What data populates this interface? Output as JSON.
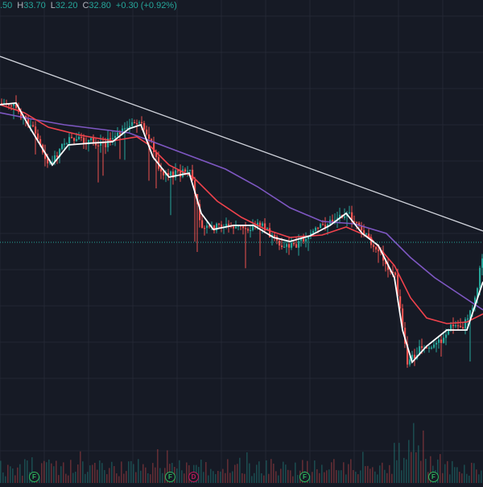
{
  "header": {
    "open_fragment": ".50",
    "high_label": "H",
    "high_value": "33.70",
    "low_label": "L",
    "low_value": "32.20",
    "close_label": "C",
    "close_value": "32.80",
    "change": "+0.30 (+0.92%)"
  },
  "colors": {
    "background": "#161a25",
    "grid": "#232734",
    "up": "#26a69a",
    "down": "#ef5350",
    "ma_fast": "#ffffff",
    "ma_mid": "#f0424c",
    "ma_slow": "#7e57c2",
    "trendline": "#d1d4dc",
    "price_line": "#26a69a",
    "event_f": "#2eb85c",
    "event_d": "#c2185b"
  },
  "events": [
    {
      "letter": "F",
      "type": "event_f"
    },
    {
      "letter": "F",
      "type": "event_f"
    },
    {
      "letter": "D",
      "type": "event_d"
    },
    {
      "letter": "F",
      "type": "event_f"
    },
    {
      "letter": "F",
      "type": "event_f"
    }
  ],
  "chart_data": {
    "type": "candlestick",
    "grid": true,
    "y_axis": "hidden",
    "x_axis": "hidden",
    "indicators": [
      "fast moving average (white)",
      "medium moving average (red)",
      "slow moving average (purple)",
      "descending trendline",
      "volume histogram"
    ],
    "notes": "Price scale and dates are not visible; values below are approximate in relative price units."
  }
}
